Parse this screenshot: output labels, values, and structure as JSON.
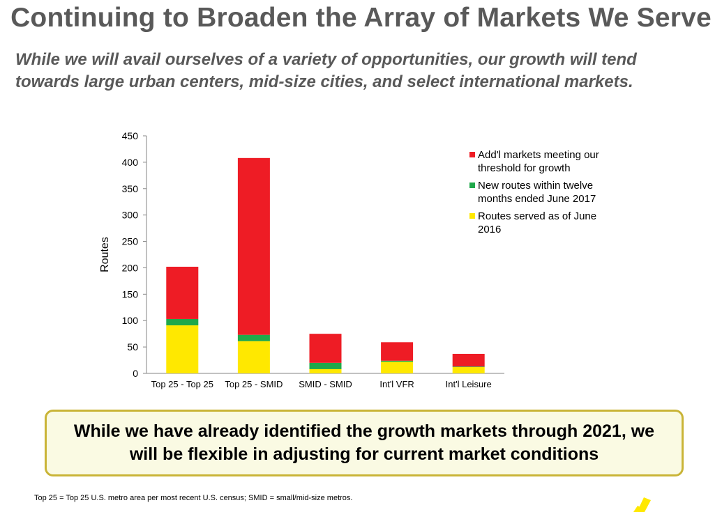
{
  "slide": {
    "title": "Continuing to Broaden the Array of Markets We Serve",
    "subtitle": "While we will avail ourselves of a variety of opportunities, our growth will tend towards large urban centers, mid-size cities, and select international markets.",
    "callout": "While we have already identified the growth markets through 2021, we will be flexible in adjusting for current market conditions",
    "footnote": "Top 25 = Top 25 U.S. metro area per most recent U.S. census; SMID = small/mid-size metros."
  },
  "colors": {
    "served": "#ffe800",
    "new": "#1fa84a",
    "addl": "#ee1c25",
    "logo": "#ffe800"
  },
  "chart_data": {
    "type": "bar",
    "stacked": true,
    "title": "",
    "xlabel": "",
    "ylabel": "Routes",
    "ylim": [
      0,
      450
    ],
    "yticks": [
      0,
      50,
      100,
      150,
      200,
      250,
      300,
      350,
      400,
      450
    ],
    "categories": [
      "Top 25 - Top 25",
      "Top 25 - SMID",
      "SMID - SMID",
      "Int'l VFR",
      "Int'l Leisure"
    ],
    "series": [
      {
        "name": "Routes served as of June 2016",
        "color": "#ffe800",
        "values": [
          91,
          61,
          8,
          22,
          12
        ]
      },
      {
        "name": "New routes within twelve months ended June 2017",
        "color": "#1fa84a",
        "values": [
          12,
          12,
          12,
          2,
          1
        ]
      },
      {
        "name": "Add'l markets meeting our threshold for growth",
        "color": "#ee1c25",
        "values": [
          99,
          335,
          55,
          35,
          24
        ]
      }
    ],
    "legend": {
      "position": "top-right",
      "order": [
        2,
        1,
        0
      ],
      "lines": [
        [
          "Add'l markets meeting our",
          "threshold for growth"
        ],
        [
          "New routes within twelve",
          "months ended June 2017"
        ],
        [
          "Routes served as of June",
          "2016"
        ]
      ]
    }
  }
}
